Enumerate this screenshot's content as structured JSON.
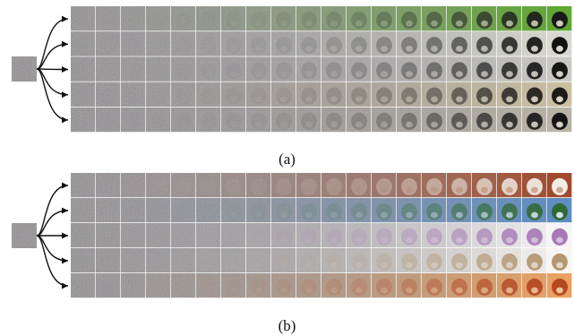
{
  "panels": [
    {
      "caption": "(a)",
      "rows": [
        {
          "final_color": "#5fa832",
          "subject_color": "#1a1a1a",
          "accent": "#e8e0d0"
        },
        {
          "final_color": "#d8d8d0",
          "subject_color": "#121212",
          "accent": "#f2ede4"
        },
        {
          "final_color": "#c9c8c4",
          "subject_color": "#161616",
          "accent": "#e9e2d6"
        },
        {
          "final_color": "#cbbfa2",
          "subject_color": "#1d1b18",
          "accent": "#efe8da"
        },
        {
          "final_color": "#b8b3a6",
          "subject_color": "#151515",
          "accent": "#eee6d8"
        }
      ]
    },
    {
      "caption": "(b)",
      "rows": [
        {
          "final_color": "#a34a2c",
          "subject_color": "#f3eee6",
          "accent": "#c9a184"
        },
        {
          "final_color": "#5e8dc4",
          "subject_color": "#2f6a35",
          "accent": "#e8f0fa"
        },
        {
          "final_color": "#f6f4f6",
          "subject_color": "#a678b6",
          "accent": "#d8c4e0"
        },
        {
          "final_color": "#f7f5f1",
          "subject_color": "#b49670",
          "accent": "#e6ddd0"
        },
        {
          "final_color": "#e9a162",
          "subject_color": "#b5471f",
          "accent": "#f3d2a6"
        }
      ]
    }
  ],
  "colors": {
    "noise": "#8f8c8f",
    "arrow": "#111111",
    "grid": "#ffffff"
  }
}
